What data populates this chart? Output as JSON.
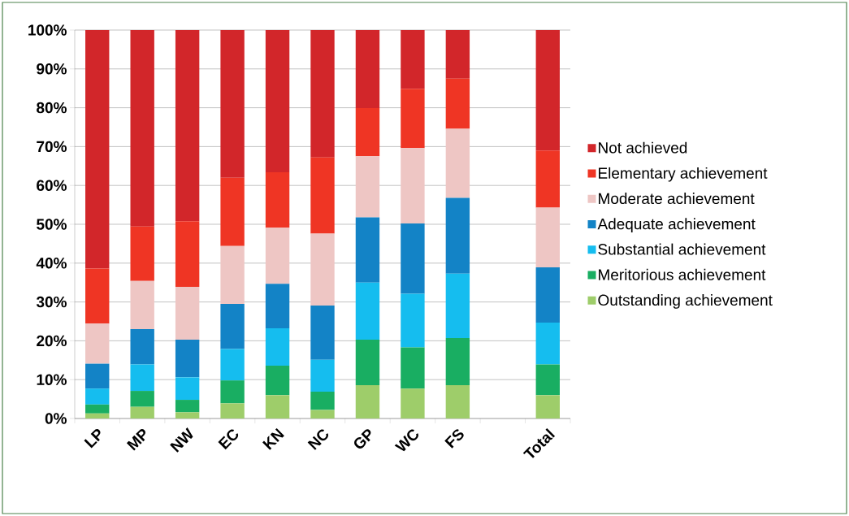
{
  "chart_data": {
    "type": "bar",
    "stacked": true,
    "categories": [
      "LP",
      "MP",
      "NW",
      "EC",
      "KN",
      "NC",
      "GP",
      "WC",
      "FS",
      null,
      "Total"
    ],
    "series": [
      {
        "name": "Outstanding achievement",
        "color": "#9ecd6a",
        "values": [
          1.3,
          3.0,
          1.6,
          3.9,
          6.0,
          2.2,
          8.6,
          7.7,
          8.6,
          null,
          6.0
        ]
      },
      {
        "name": "Meritorious achievement",
        "color": "#19ae62",
        "values": [
          2.3,
          4.1,
          3.2,
          5.9,
          7.6,
          4.7,
          11.7,
          10.6,
          12.1,
          null,
          7.9
        ]
      },
      {
        "name": "Substantial achievement",
        "color": "#15bdef",
        "values": [
          4.1,
          6.8,
          5.8,
          8.1,
          9.6,
          8.2,
          14.7,
          13.8,
          16.6,
          null,
          10.8
        ]
      },
      {
        "name": "Adequate achievement",
        "color": "#1383c6",
        "values": [
          6.4,
          9.1,
          9.7,
          11.6,
          11.5,
          14.0,
          16.8,
          18.1,
          19.5,
          null,
          14.2
        ]
      },
      {
        "name": "Moderate achievement",
        "color": "#eec6c4",
        "values": [
          10.3,
          12.4,
          13.6,
          14.9,
          14.4,
          18.5,
          15.7,
          19.4,
          17.8,
          null,
          15.4
        ]
      },
      {
        "name": "Elementary achievement",
        "color": "#ef3524",
        "values": [
          14.2,
          14.0,
          16.9,
          17.6,
          14.3,
          19.6,
          12.4,
          15.3,
          12.9,
          null,
          14.7
        ]
      },
      {
        "name": "Not achieved",
        "color": "#d2262a",
        "values": [
          61.4,
          50.6,
          49.2,
          38.0,
          36.6,
          32.8,
          20.1,
          15.1,
          12.5,
          null,
          31.0
        ]
      }
    ],
    "ylim": [
      0,
      100
    ],
    "yticks": [
      {
        "value": 0,
        "label": "0%"
      },
      {
        "value": 10,
        "label": "10%"
      },
      {
        "value": 20,
        "label": "20%"
      },
      {
        "value": 30,
        "label": "30%"
      },
      {
        "value": 40,
        "label": "40%"
      },
      {
        "value": 50,
        "label": "50%"
      },
      {
        "value": 60,
        "label": "60%"
      },
      {
        "value": 70,
        "label": "70%"
      },
      {
        "value": 80,
        "label": "80%"
      },
      {
        "value": 90,
        "label": "90%"
      },
      {
        "value": 100,
        "label": "100%"
      }
    ],
    "grid": "y",
    "legend": "right"
  }
}
